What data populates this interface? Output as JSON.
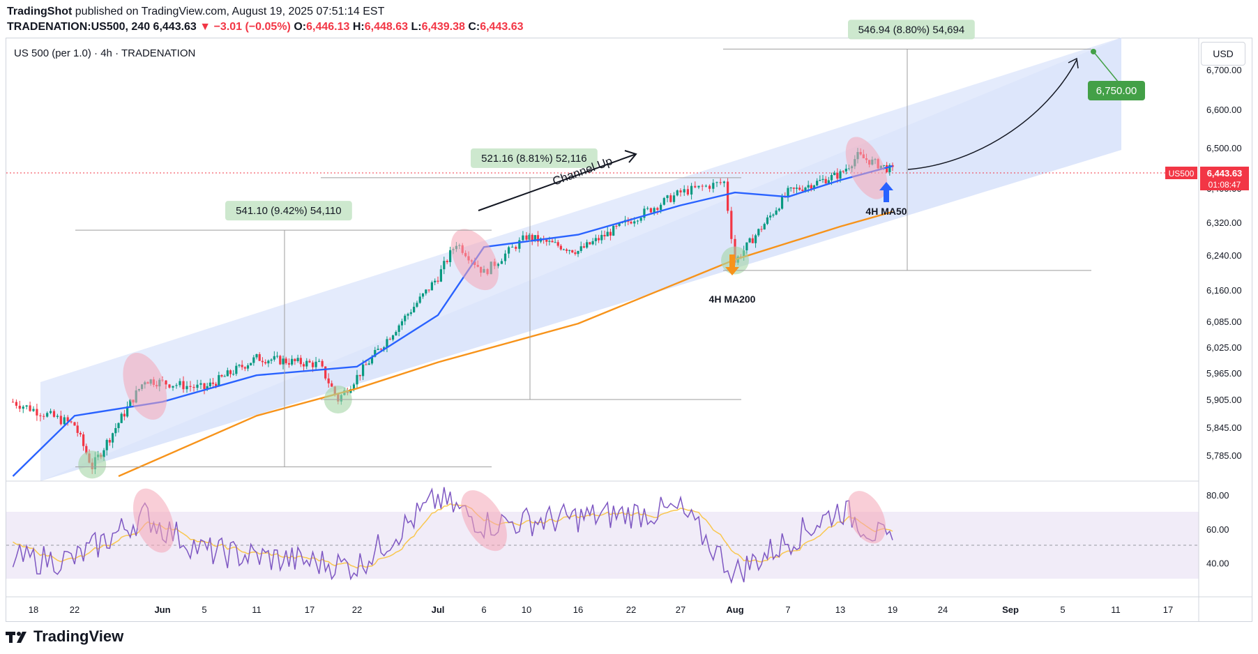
{
  "header": {
    "publisher": "TradingShot",
    "published_line": "published on TradingView.com, August 19, 2025 07:51:14 EST",
    "ticker": "TRADENATION:US500, 240",
    "last": "6,443.63",
    "change": "−3.01 (−0.05%)",
    "o_label": "O:",
    "o": "6,446.13",
    "h_label": "H:",
    "h": "6,448.63",
    "l_label": "L:",
    "l": "6,439.38",
    "c_label": "C:",
    "c": "6,443.63"
  },
  "symbol_line": "US 500 (per 1.0) · 4h · TRADENATION",
  "currency": "USD",
  "price_tag": {
    "symbol": "US500",
    "value": "6,443.63",
    "countdown": "01:08:47"
  },
  "footer": {
    "brand": "TradingView"
  },
  "colors": {
    "ma50": "#2962ff",
    "ma200": "#f7931a",
    "channel": "#d8e3fb",
    "up": "#089981",
    "down": "#f23645",
    "rsi": "#7e57c2",
    "rsi_ma": "#f9c74f",
    "target": "#43a047"
  },
  "annotations": {
    "channel_label": "Channel Up",
    "ma50_label": "4H MA50",
    "ma200_label": "4H MA200",
    "target": "6,750.00",
    "range1": "541.10 (9.42%) 54,110",
    "range2": "521.16 (8.81%) 52,116",
    "range3": "546.94 (8.80%) 54,694"
  },
  "chart_data": {
    "type": "line",
    "title": "US 500 (per 1.0) · 4h · TRADENATION",
    "y_ticks": [
      "6,700.00",
      "6,600.00",
      "6,500.00",
      "6,400.00",
      "6,320.00",
      "6,240.00",
      "6,160.00",
      "6,085.00",
      "6,025.00",
      "5,965.00",
      "5,905.00",
      "5,845.00",
      "5,785.00"
    ],
    "x_ticks": [
      "18",
      "22",
      "Jun",
      "5",
      "11",
      "17",
      "22",
      "Jul",
      "6",
      "10",
      "16",
      "22",
      "27",
      "Aug",
      "7",
      "13",
      "19",
      "24",
      "Sep",
      "5",
      "11",
      "17"
    ],
    "rsi_ticks": [
      "80.00",
      "60.00",
      "40.00"
    ],
    "series": [
      {
        "name": "4H MA50",
        "x": [
          "May 16",
          "May 22",
          "Jun 1",
          "Jun 11",
          "Jun 22",
          "Jul 1",
          "Jul 6",
          "Jul 16",
          "Jul 27",
          "Aug 1",
          "Aug 7",
          "Aug 13",
          "Aug 19"
        ],
        "values": [
          5740,
          5870,
          5900,
          5960,
          5980,
          6100,
          6260,
          6290,
          6360,
          6390,
          6380,
          6420,
          6455
        ]
      },
      {
        "name": "4H MA200",
        "x": [
          "May 27",
          "Jun 11",
          "Jun 22",
          "Jul 1",
          "Jul 16",
          "Aug 1",
          "Aug 13",
          "Aug 19"
        ],
        "values": [
          5740,
          5870,
          5930,
          5990,
          6080,
          6230,
          6310,
          6345
        ]
      },
      {
        "name": "RSI",
        "x": [
          "May 22",
          "May 30",
          "Jun 5",
          "Jun 22",
          "Jul 1",
          "Jul 6",
          "Jul 27",
          "Aug 1",
          "Aug 13",
          "Aug 19"
        ],
        "values": [
          42,
          68,
          47,
          38,
          78,
          63,
          71,
          34,
          72,
          50
        ]
      },
      {
        "name": "US500",
        "x": [
          "May 16",
          "May 22",
          "May 24",
          "May 30",
          "Jun 5",
          "Jun 11",
          "Jun 18",
          "Jun 20",
          "Jul 1",
          "Jul 3",
          "Jul 6",
          "Jul 10",
          "Jul 16",
          "Jul 27",
          "Jul 31",
          "Aug 1",
          "Aug 7",
          "Aug 13",
          "Aug 15",
          "Aug 19"
        ],
        "values": [
          5900,
          5850,
          5760,
          5950,
          5930,
          6000,
          5985,
          5905,
          6190,
          6270,
          6200,
          6285,
          6250,
          6390,
          6415,
          6225,
          6390,
          6435,
          6480,
          6443.63
        ]
      }
    ],
    "target": 6750,
    "ranges": [
      {
        "label": "541.10 (9.42%) 54,110",
        "from": 5760,
        "to": 6301
      },
      {
        "label": "521.16 (8.81%) 52,116",
        "from": 5905,
        "to": 6426
      },
      {
        "label": "546.94 (8.80%) 54,694",
        "from": 6205,
        "to": 6752
      }
    ]
  }
}
